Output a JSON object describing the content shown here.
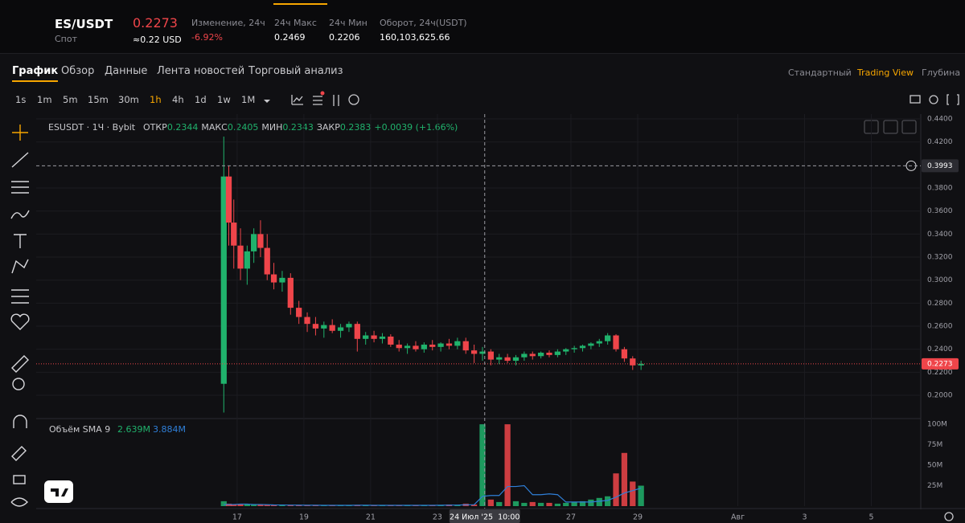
{
  "header": {
    "pair": "ES/USDT",
    "market": "Спот",
    "price": "0.2273",
    "price_usd": "≈0.22 USD",
    "stats": [
      {
        "label": "Изменение, 24ч",
        "value": "-6.92%"
      },
      {
        "label": "24ч Макс",
        "value": "0.2469"
      },
      {
        "label": "24ч Мин",
        "value": "0.2206"
      },
      {
        "label": "Оборот, 24ч(USDT)",
        "value": "160,103,625.66"
      }
    ]
  },
  "tabs": [
    "График",
    "Обзор",
    "Данные",
    "Лента новостей",
    "Торговый анализ"
  ],
  "views": [
    "Стандартный",
    "Trading View",
    "Глубина"
  ],
  "intervals": [
    "1s",
    "1m",
    "5m",
    "15m",
    "30m",
    "1h",
    "4h",
    "1d",
    "1w",
    "1M"
  ],
  "chart_data": {
    "type": "candlestick",
    "symbol": "ESUSDT · 1Ч · Bybit",
    "ohlc_legend": [
      {
        "label": "ОТКР",
        "value": "0.2344"
      },
      {
        "label": "МАКС",
        "value": "0.2405"
      },
      {
        "label": "МИН",
        "value": "0.2343"
      },
      {
        "label": "ЗАКР",
        "value": "0.2383"
      }
    ],
    "change": "+0.0039 (+1.66%)",
    "volume_legend": {
      "name": "Объём SMA 9",
      "volume": "2.639M",
      "sma": "3.884M"
    },
    "up_color": "#20b26c",
    "down_color": "#ef454a",
    "sma_color": "#2f7fd8",
    "x": [
      16.6,
      16.75,
      16.9,
      17.1,
      17.3,
      17.5,
      17.7,
      17.9,
      18.1,
      18.35,
      18.6,
      18.85,
      19.1,
      19.35,
      19.6,
      19.85,
      20.1,
      20.35,
      20.6,
      20.85,
      21.1,
      21.35,
      21.6,
      21.85,
      22.1,
      22.35,
      22.6,
      22.85,
      23.1,
      23.35,
      23.6,
      23.85,
      24.1,
      24.35,
      24.6,
      24.85,
      25.1,
      25.35,
      25.6,
      25.85,
      26.1,
      26.35,
      26.6,
      26.85,
      27.1,
      27.35,
      27.6,
      27.85,
      28.1,
      28.35,
      28.6,
      28.85,
      29.1
    ],
    "open": [
      0.21,
      0.39,
      0.35,
      0.33,
      0.31,
      0.325,
      0.34,
      0.328,
      0.305,
      0.298,
      0.302,
      0.276,
      0.268,
      0.262,
      0.258,
      0.261,
      0.256,
      0.259,
      0.262,
      0.249,
      0.252,
      0.249,
      0.251,
      0.244,
      0.241,
      0.243,
      0.24,
      0.244,
      0.242,
      0.245,
      0.243,
      0.247,
      0.239,
      0.236,
      0.238,
      0.231,
      0.233,
      0.23,
      0.233,
      0.236,
      0.234,
      0.237,
      0.235,
      0.238,
      0.24,
      0.241,
      0.243,
      0.245,
      0.247,
      0.252,
      0.24,
      0.232,
      0.226
    ],
    "high": [
      0.4247,
      0.399,
      0.37,
      0.345,
      0.33,
      0.345,
      0.352,
      0.34,
      0.315,
      0.308,
      0.306,
      0.282,
      0.272,
      0.268,
      0.264,
      0.266,
      0.262,
      0.264,
      0.264,
      0.255,
      0.256,
      0.254,
      0.253,
      0.248,
      0.245,
      0.247,
      0.246,
      0.248,
      0.246,
      0.249,
      0.25,
      0.25,
      0.244,
      0.242,
      0.24,
      0.236,
      0.236,
      0.235,
      0.238,
      0.238,
      0.238,
      0.239,
      0.24,
      0.241,
      0.243,
      0.244,
      0.246,
      0.249,
      0.254,
      0.253,
      0.242,
      0.234,
      0.23
    ],
    "low": [
      0.185,
      0.33,
      0.31,
      0.3,
      0.296,
      0.315,
      0.32,
      0.3,
      0.292,
      0.29,
      0.27,
      0.262,
      0.255,
      0.252,
      0.25,
      0.254,
      0.25,
      0.255,
      0.238,
      0.244,
      0.246,
      0.245,
      0.242,
      0.238,
      0.236,
      0.238,
      0.237,
      0.239,
      0.238,
      0.24,
      0.24,
      0.236,
      0.228,
      0.23,
      0.226,
      0.227,
      0.228,
      0.226,
      0.23,
      0.231,
      0.232,
      0.233,
      0.233,
      0.235,
      0.237,
      0.238,
      0.24,
      0.242,
      0.244,
      0.238,
      0.229,
      0.222,
      0.222
    ],
    "close": [
      0.39,
      0.35,
      0.33,
      0.31,
      0.325,
      0.34,
      0.328,
      0.305,
      0.298,
      0.302,
      0.276,
      0.268,
      0.262,
      0.258,
      0.261,
      0.256,
      0.259,
      0.262,
      0.249,
      0.252,
      0.249,
      0.251,
      0.244,
      0.241,
      0.243,
      0.24,
      0.244,
      0.242,
      0.245,
      0.243,
      0.247,
      0.239,
      0.236,
      0.238,
      0.231,
      0.233,
      0.23,
      0.233,
      0.236,
      0.234,
      0.237,
      0.235,
      0.238,
      0.24,
      0.241,
      0.243,
      0.245,
      0.247,
      0.252,
      0.24,
      0.232,
      0.226,
      0.2273
    ],
    "volume": [
      6,
      3,
      2,
      2,
      2,
      1.5,
      1.5,
      1.5,
      1,
      1,
      1.5,
      1,
      1,
      1,
      1,
      1,
      1,
      1,
      1.5,
      1,
      1,
      1,
      1,
      1,
      1,
      1,
      1,
      1,
      1,
      2,
      1.5,
      3,
      2,
      100,
      8,
      5,
      100,
      6,
      4,
      5,
      4,
      4,
      3,
      4,
      5,
      6,
      8,
      10,
      12,
      40,
      65,
      30,
      25
    ],
    "sma": [
      2,
      2,
      2,
      2.5,
      2.5,
      2,
      2,
      1.8,
      1.5,
      1.4,
      1.3,
      1.2,
      1.1,
      1.1,
      1,
      1,
      1,
      1,
      1.1,
      1.1,
      1,
      1,
      1,
      1,
      1,
      1,
      1,
      1,
      1.1,
      1.2,
      1.3,
      1.6,
      1.8,
      12,
      13,
      13,
      24,
      24,
      25,
      14,
      14,
      15,
      14,
      5,
      5,
      5,
      5,
      6,
      7,
      11,
      16,
      19,
      22
    ],
    "xlim": [
      10.98,
      37.48
    ],
    "xticks": [
      17,
      19,
      21,
      23,
      27,
      29,
      {
        "value": 32,
        "label": "Авг"
      },
      {
        "value": 34,
        "label": "3"
      },
      {
        "value": 36,
        "label": "5"
      }
    ],
    "ylim": [
      0.1805,
      0.4442
    ],
    "yticks": [
      {
        "value": 0.44,
        "label": "0.4400"
      },
      {
        "value": 0.42,
        "label": "0.4200"
      },
      {
        "value": 0.38,
        "label": "0.3800"
      },
      {
        "value": 0.36,
        "label": "0.3600"
      },
      {
        "value": 0.34,
        "label": "0.3400"
      },
      {
        "value": 0.32,
        "label": "0.3200"
      },
      {
        "value": 0.3,
        "label": "0.3000"
      },
      {
        "value": 0.28,
        "label": "0.2800"
      },
      {
        "value": 0.26,
        "label": "0.2600"
      },
      {
        "value": 0.24,
        "label": "0.2400"
      },
      {
        "value": 0.22,
        "label": "0.2200"
      },
      {
        "value": 0.2,
        "label": "0.2000"
      }
    ],
    "volume_ylim": [
      0,
      106
    ],
    "volume_yticks": [
      {
        "value": 100,
        "label": "100M"
      },
      {
        "value": 75,
        "label": "75M"
      },
      {
        "value": 50,
        "label": "50M"
      },
      {
        "value": 25,
        "label": "25M"
      }
    ],
    "grid": true,
    "crosshair_price": {
      "value": 0.3993,
      "label": "0.3993"
    },
    "crosshair_time": {
      "value": 24.4167,
      "label": "24 Июл '25  10:00"
    },
    "last_price": {
      "value": 0.2273,
      "label": "0.2273"
    }
  }
}
